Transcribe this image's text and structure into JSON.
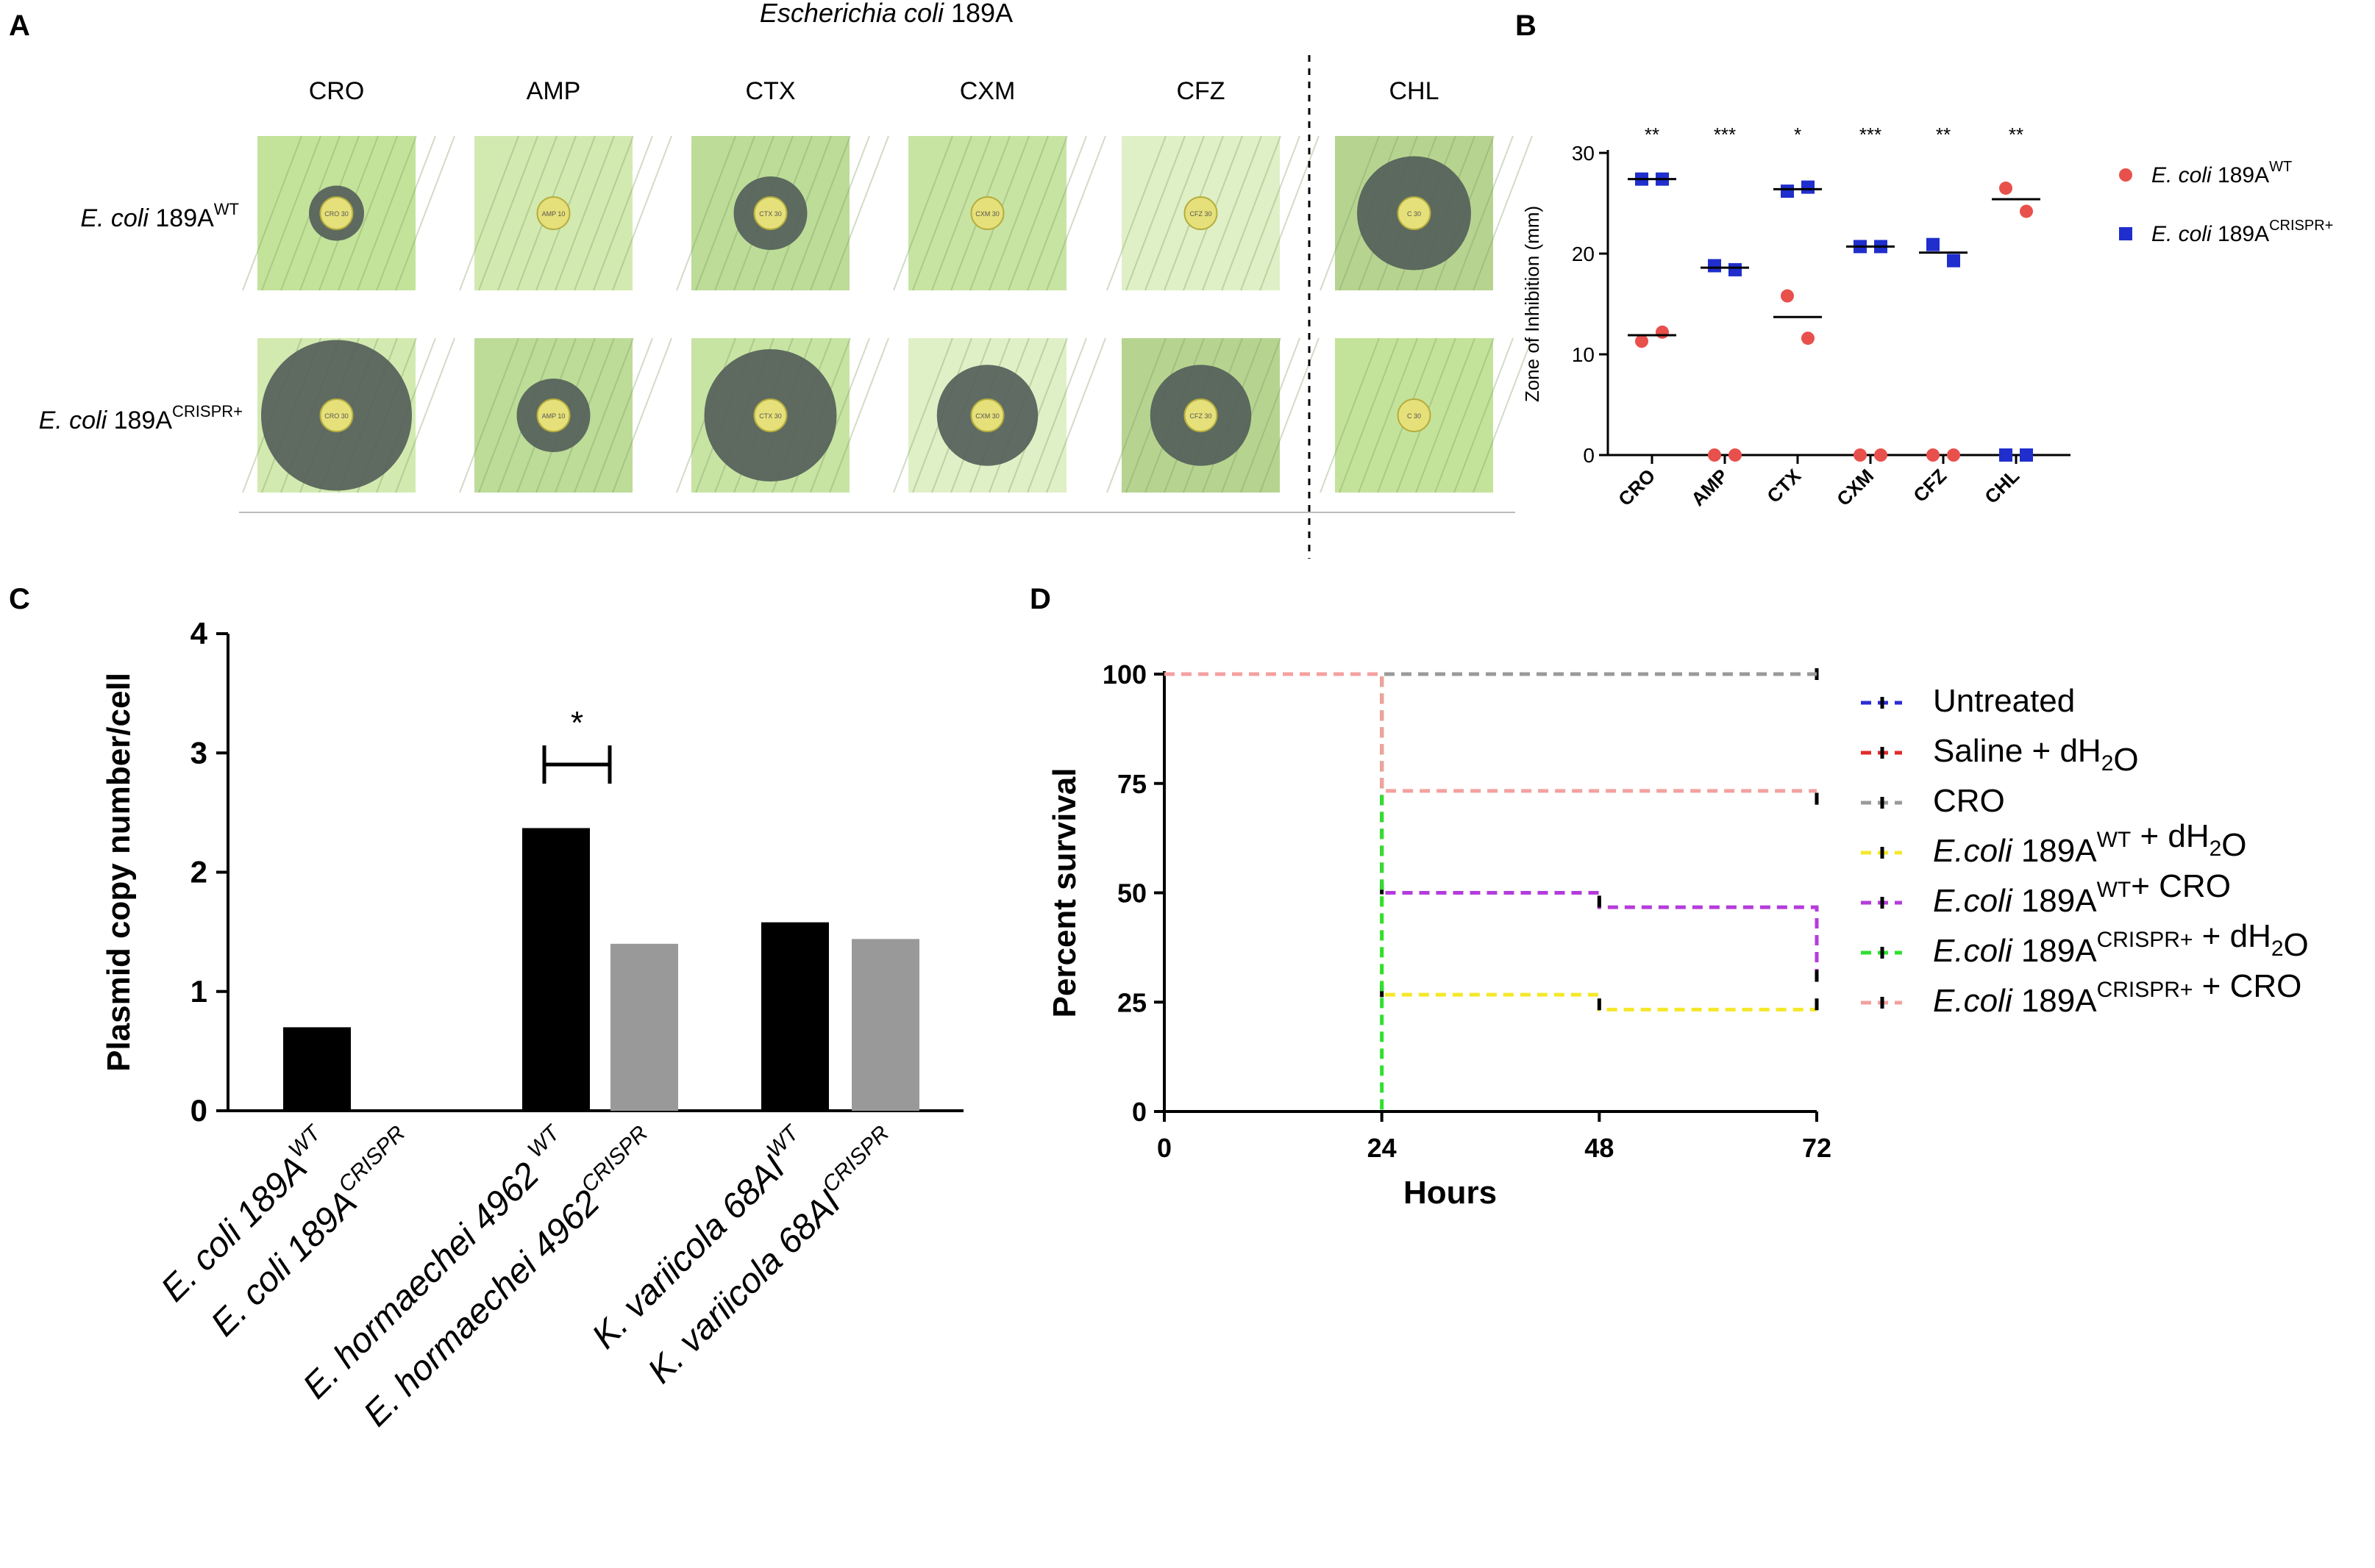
{
  "panels": {
    "A": {
      "letter": "A",
      "title_italic": "Escherichia coli",
      "title_rest": " 189A",
      "antibiotics": [
        "CRO",
        "AMP",
        "CTX",
        "CXM",
        "CFZ",
        "CHL"
      ],
      "rows": [
        {
          "italic": "E. coli",
          "rest": " 189A",
          "sup": "WT",
          "zones": [
            0.3,
            0.06,
            0.4,
            0.16,
            0.0,
            0.62
          ]
        },
        {
          "italic": "E. coli",
          "rest": " 189A",
          "sup": "CRISPR+",
          "zones": [
            0.82,
            0.4,
            0.72,
            0.55,
            0.55,
            0.0
          ]
        }
      ],
      "disc_labels": [
        [
          "CRO 30",
          "AMP 10",
          "CTX 30",
          "CXM 30",
          "CFZ 30",
          "C 30"
        ],
        [
          "CRO 30",
          "AMP 10",
          "CTX 30",
          "CXM 30",
          "CFZ 30",
          "C 30"
        ]
      ]
    },
    "B": {
      "letter": "B"
    },
    "C": {
      "letter": "C"
    },
    "D": {
      "letter": "D"
    }
  },
  "chart_data": [
    {
      "id": "B",
      "type": "scatter",
      "title": "",
      "xlabel": "",
      "ylabel": "Zone of Inhibition (mm)",
      "ylim": [
        0,
        30
      ],
      "yticks": [
        0,
        10,
        20,
        30
      ],
      "categories": [
        "CRO",
        "AMP",
        "CTX",
        "CXM",
        "CFZ",
        "CHL"
      ],
      "significance": [
        "**",
        "***",
        "*",
        "***",
        "**",
        "**"
      ],
      "series": [
        {
          "name": "E. coli 189A",
          "sup": "WT",
          "color": "#e8504c",
          "marker": "circle",
          "points": [
            [
              11.3,
              12.2
            ],
            [
              0,
              0
            ],
            [
              15.8,
              11.6
            ],
            [
              0,
              0
            ],
            [
              0,
              0
            ],
            [
              26.5,
              24.2
            ]
          ],
          "medians": [
            11.9,
            null,
            13.7,
            null,
            null,
            25.4
          ]
        },
        {
          "name": "E. coli 189A",
          "sup": "CRISPR+",
          "color": "#1f2ecc",
          "marker": "square",
          "points": [
            [
              27.4,
              27.4
            ],
            [
              18.8,
              18.4
            ],
            [
              26.2,
              26.6
            ],
            [
              20.7,
              20.7
            ],
            [
              20.9,
              19.3
            ],
            [
              0,
              0
            ]
          ],
          "medians": [
            27.4,
            18.6,
            26.4,
            20.7,
            20.1,
            null
          ]
        }
      ]
    },
    {
      "id": "C",
      "type": "bar",
      "title": "",
      "xlabel": "",
      "ylabel": "Plasmid copy number/cell",
      "ylim": [
        0,
        4
      ],
      "yticks": [
        0,
        1,
        2,
        3,
        4
      ],
      "categories": [
        {
          "base": "E. coli 189A",
          "sup": "WT"
        },
        {
          "base": "E. coli 189A",
          "sup": "CRISPR"
        },
        {
          "base": "E. hormaechei 4962 ",
          "sup": "WT"
        },
        {
          "base": "E. hormaechei 4962",
          "sup": "CRISPR"
        },
        {
          "base": "K. variicola 68AI",
          "sup": "WT"
        },
        {
          "base": "K. variicola 68AI",
          "sup": "CRISPR"
        }
      ],
      "values": [
        0.7,
        0.0,
        2.37,
        1.4,
        1.58,
        1.44
      ],
      "colors": [
        "#000000",
        "#999999",
        "#000000",
        "#999999",
        "#000000",
        "#999999"
      ],
      "annotation": {
        "text": "*",
        "between": [
          2,
          3
        ],
        "y": 3.0
      }
    },
    {
      "id": "D",
      "type": "line",
      "title": "",
      "xlabel": "Hours",
      "ylabel": "Percent survival",
      "xlim": [
        0,
        72
      ],
      "ylim": [
        0,
        100
      ],
      "xticks": [
        0,
        24,
        48,
        72
      ],
      "yticks": [
        0,
        25,
        50,
        75,
        100
      ],
      "series": [
        {
          "name": "Untreated",
          "color": "#2b2bd6",
          "steps": [
            [
              0,
              100
            ],
            [
              72,
              100
            ]
          ],
          "censor": [
            [
              72,
              100
            ]
          ]
        },
        {
          "name": "Saline + dH2O",
          "color": "#e22a2a",
          "steps": [
            [
              0,
              100
            ],
            [
              72,
              100
            ]
          ],
          "censor": [
            [
              72,
              100
            ]
          ]
        },
        {
          "name": "CRO",
          "color": "#9a9a9a",
          "steps": [
            [
              0,
              100
            ],
            [
              72,
              100
            ]
          ],
          "censor": [
            [
              72,
              71.5
            ]
          ]
        },
        {
          "name": "E.coli 189AWT + dH2O",
          "color": "#f4e82a",
          "steps": [
            [
              0,
              100
            ],
            [
              24,
              100
            ],
            [
              24,
              26.7
            ],
            [
              48,
              26.7
            ],
            [
              48,
              23.3
            ],
            [
              72,
              23.3
            ]
          ],
          "censor": [
            [
              24,
              27.5
            ],
            [
              48,
              24.5
            ],
            [
              72,
              24.5
            ]
          ]
        },
        {
          "name": "E.coli 189AWT+ CRO",
          "color": "#b43cdb",
          "steps": [
            [
              0,
              100
            ],
            [
              24,
              100
            ],
            [
              24,
              50
            ],
            [
              48,
              50
            ],
            [
              48,
              46.7
            ],
            [
              72,
              46.7
            ],
            [
              72,
              30
            ]
          ],
          "censor": [
            [
              24,
              51
            ],
            [
              48,
              48
            ],
            [
              72,
              31
            ]
          ]
        },
        {
          "name": "E.coli 189ACRISPR+ + dH2O",
          "color": "#2ee02e",
          "steps": [
            [
              0,
              100
            ],
            [
              24,
              100
            ],
            [
              24,
              0
            ]
          ],
          "censor": []
        },
        {
          "name": "E.coli 189ACRISPR+ + CRO",
          "color": "#f4a0a0",
          "steps": [
            [
              0,
              100
            ],
            [
              24,
              100
            ],
            [
              24,
              73.3
            ],
            [
              72,
              73.3
            ]
          ],
          "censor": [
            [
              72,
              71.5
            ]
          ]
        }
      ]
    }
  ],
  "legend_B": [
    {
      "italic": "E. coli",
      "rest": " 189A",
      "sup": "WT",
      "color": "#e8504c",
      "marker": "circle"
    },
    {
      "italic": "E. coli",
      "rest": " 189A",
      "sup": "CRISPR+",
      "color": "#1f2ecc",
      "marker": "square"
    }
  ],
  "legend_D": [
    {
      "parts": [
        [
          "n",
          "Untreated"
        ]
      ],
      "color": "#2b2bd6"
    },
    {
      "parts": [
        [
          "n",
          "Saline + dH"
        ],
        [
          "sub",
          "2"
        ],
        [
          "n",
          "O"
        ]
      ],
      "color": "#e22a2a"
    },
    {
      "parts": [
        [
          "n",
          "CRO"
        ]
      ],
      "color": "#9a9a9a"
    },
    {
      "parts": [
        [
          "i",
          "E.coli"
        ],
        [
          "n",
          " 189A"
        ],
        [
          "sup",
          "WT"
        ],
        [
          "n",
          " + dH"
        ],
        [
          "sub",
          "2"
        ],
        [
          "n",
          "O"
        ]
      ],
      "color": "#f4e82a"
    },
    {
      "parts": [
        [
          "i",
          "E.coli"
        ],
        [
          "n",
          " 189A"
        ],
        [
          "sup",
          "WT"
        ],
        [
          "n",
          "+ CRO"
        ]
      ],
      "color": "#b43cdb"
    },
    {
      "parts": [
        [
          "i",
          "E.coli"
        ],
        [
          "n",
          " 189A"
        ],
        [
          "sup",
          "CRISPR+"
        ],
        [
          "n",
          " + dH"
        ],
        [
          "sub",
          "2"
        ],
        [
          "n",
          "O"
        ]
      ],
      "color": "#2ee02e"
    },
    {
      "parts": [
        [
          "i",
          "E.coli"
        ],
        [
          "n",
          " 189A"
        ],
        [
          "sup",
          "CRISPR+"
        ],
        [
          "n",
          " + CRO"
        ]
      ],
      "color": "#f4a0a0"
    }
  ]
}
